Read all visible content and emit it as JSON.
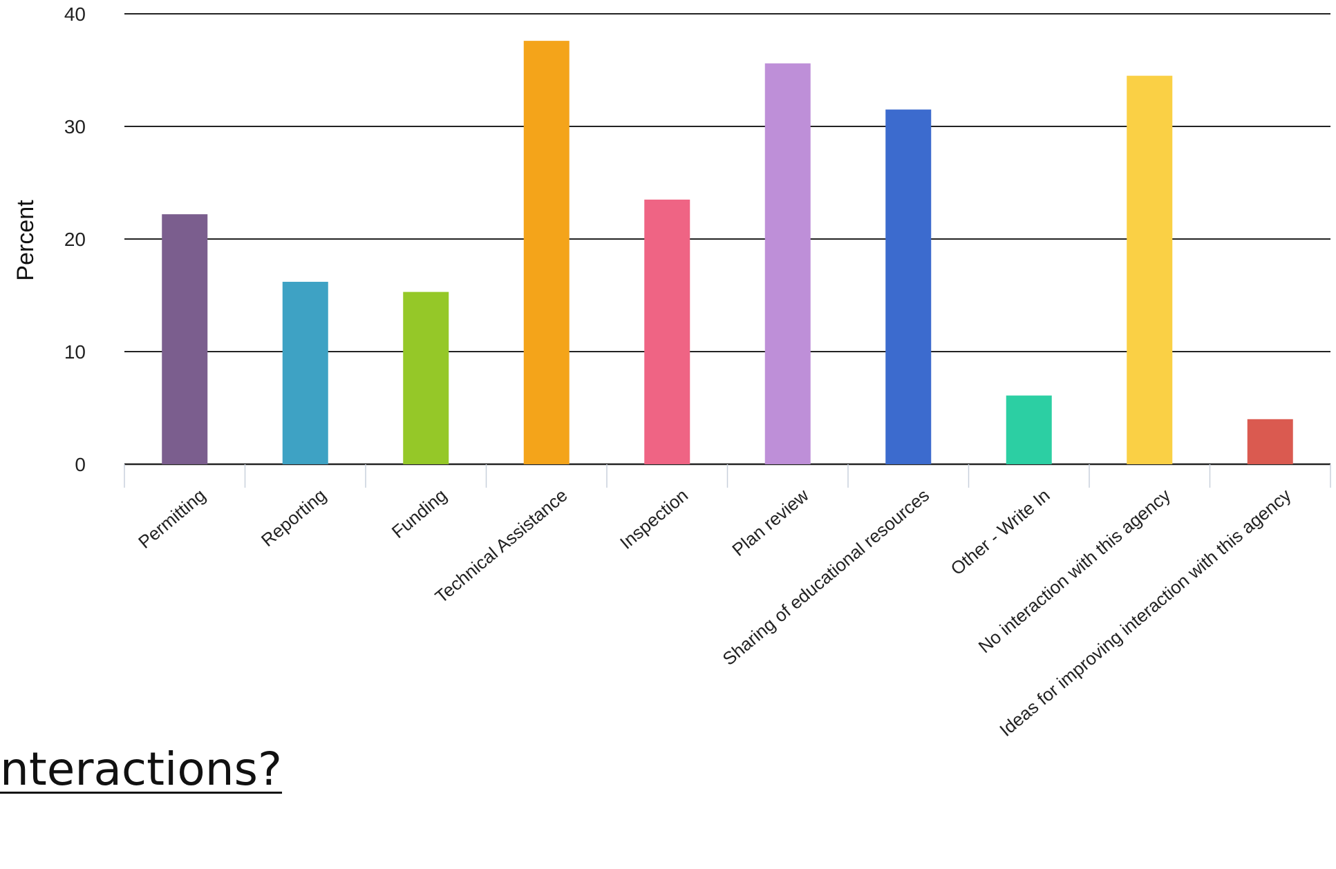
{
  "question_fragment": "nteractions?",
  "chart_data": {
    "type": "bar",
    "ylabel": "Percent",
    "xlabel": "",
    "ylim": [
      0,
      40
    ],
    "yticks": [
      0,
      10,
      20,
      30,
      40
    ],
    "grid": true,
    "legend": "none",
    "categories": [
      "Permitting",
      "Reporting",
      "Funding",
      "Technical Assistance",
      "Inspection",
      "Plan review",
      "Sharing of educational resources",
      "Other - Write In",
      "No interaction with this agency",
      "Ideas for improving interaction with this agency"
    ],
    "values": [
      22.2,
      16.2,
      15.3,
      37.6,
      23.5,
      35.6,
      31.5,
      6.1,
      34.5,
      4.0
    ],
    "colors": [
      "#7b5e8e",
      "#3ea2c4",
      "#95c828",
      "#f4a41a",
      "#ef6484",
      "#be8fd8",
      "#3c6bce",
      "#2ccfa3",
      "#fad045",
      "#da5a50"
    ]
  }
}
